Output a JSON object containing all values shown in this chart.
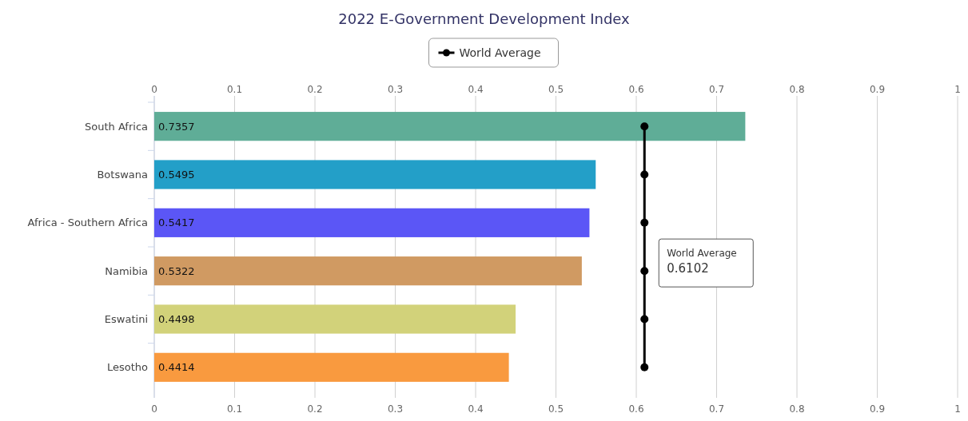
{
  "chart_data": {
    "type": "bar",
    "orientation": "horizontal",
    "title": "2022 E-Government Development Index",
    "categories": [
      "South Africa",
      "Botswana",
      "Africa - Southern Africa",
      "Namibia",
      "Eswatini",
      "Lesotho"
    ],
    "series": [
      {
        "colors": [
          "#5fad97",
          "#239fc8",
          "#5b56f6",
          "#d09a62",
          "#d2d27a",
          "#f99a3f"
        ],
        "values": [
          0.7357,
          0.5495,
          0.5417,
          0.5322,
          0.4498,
          0.4414
        ],
        "value_labels": [
          "0.7357",
          "0.5495",
          "0.5417",
          "0.5322",
          "0.4498",
          "0.4414"
        ]
      },
      {
        "type": "line",
        "name": "World Average",
        "color": "#000000",
        "values": [
          0.6102,
          0.6102,
          0.6102,
          0.6102,
          0.6102,
          0.6102
        ],
        "marker": "circle",
        "line_style": "solid"
      }
    ],
    "xlim": [
      0,
      1
    ],
    "xticks": [
      0,
      0.1,
      0.2,
      0.3,
      0.4,
      0.5,
      0.6,
      0.7,
      0.8,
      0.9,
      1
    ],
    "x2lim": [
      0,
      1
    ],
    "x2ticks": [
      0,
      0.1,
      0.2,
      0.3,
      0.4,
      0.5,
      0.6,
      0.7,
      0.8,
      0.9,
      1
    ],
    "grid": "x",
    "legend": "top",
    "annotations": [
      {
        "text": "World Average\n0.6102",
        "x": 0.6102,
        "y": "Namibia"
      }
    ]
  }
}
